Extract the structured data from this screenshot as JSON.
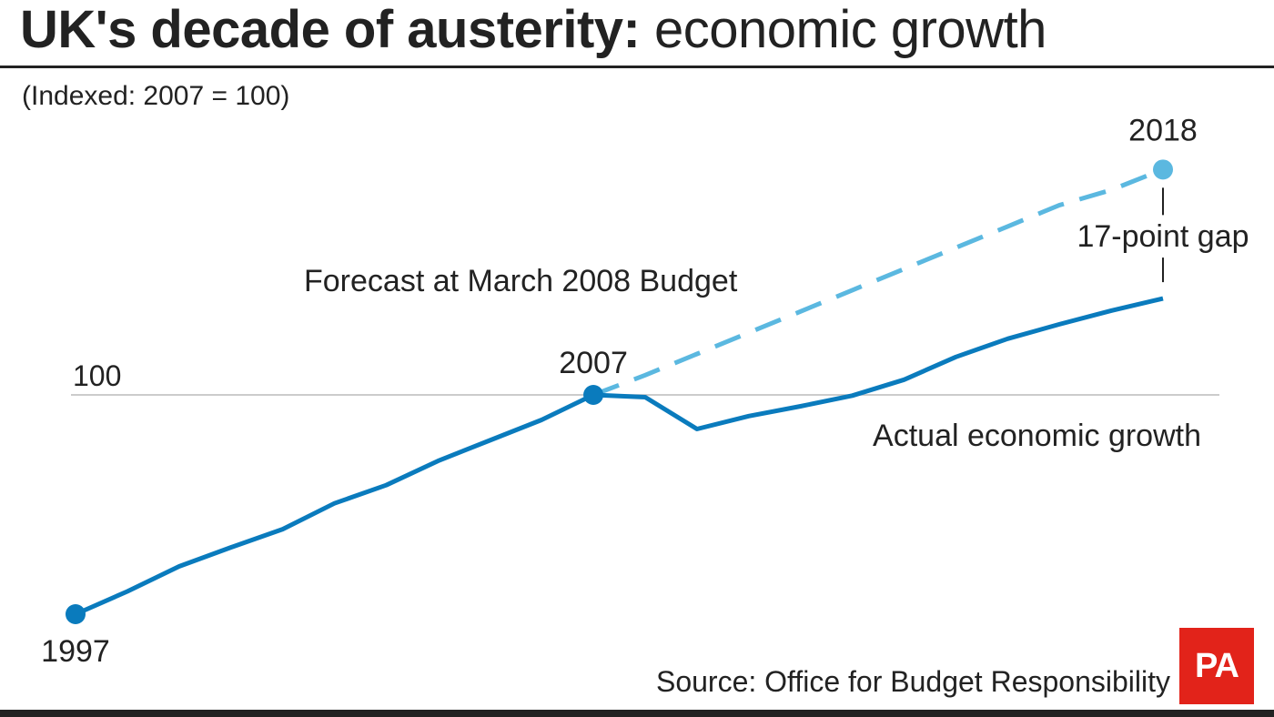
{
  "header": {
    "title_bold": "UK's decade of austerity:",
    "title_light": "economic growth",
    "subtitle": "(Indexed: 2007 = 100)"
  },
  "footer": {
    "source": "Source: Office for Budget Responsibility",
    "logo_text": "PA"
  },
  "colors": {
    "actual": "#0a7bbd",
    "forecast": "#5bb8e0",
    "reference_line": "#bbbbbb",
    "logo": "#e2231a"
  },
  "chart_data": {
    "type": "line",
    "title": "UK's decade of austerity: economic growth",
    "subtitle": "(Indexed: 2007 = 100)",
    "xlabel": "",
    "ylabel": "",
    "grid": false,
    "reference_line": {
      "value": 100,
      "label": "100"
    },
    "series": [
      {
        "name": "Actual economic growth",
        "style": "solid",
        "x": [
          1997,
          1998,
          1999,
          2000,
          2001,
          2002,
          2003,
          2004,
          2005,
          2006,
          2007,
          2008,
          2009,
          2010,
          2011,
          2012,
          2013,
          2014,
          2015,
          2016,
          2017,
          2018
        ],
        "values": [
          71.1,
          74.1,
          77.4,
          79.9,
          82.3,
          85.7,
          88.1,
          91.3,
          94.0,
          96.7,
          100.0,
          99.7,
          95.5,
          97.2,
          98.5,
          99.9,
          102.0,
          105.0,
          107.4,
          109.3,
          111.1,
          112.7
        ]
      },
      {
        "name": "Forecast at March 2008 Budget",
        "style": "dashed",
        "x": [
          2007,
          2008,
          2009,
          2010,
          2011,
          2012,
          2013,
          2014,
          2015,
          2016,
          2017,
          2018
        ],
        "values": [
          100.0,
          102.6,
          105.4,
          108.2,
          111.0,
          113.8,
          116.6,
          119.4,
          122.2,
          125.0,
          127.0,
          129.7
        ]
      }
    ],
    "annotations": {
      "start_year": "1997",
      "mid_year": "2007",
      "end_year": "2018",
      "gap": "17-point gap"
    }
  }
}
